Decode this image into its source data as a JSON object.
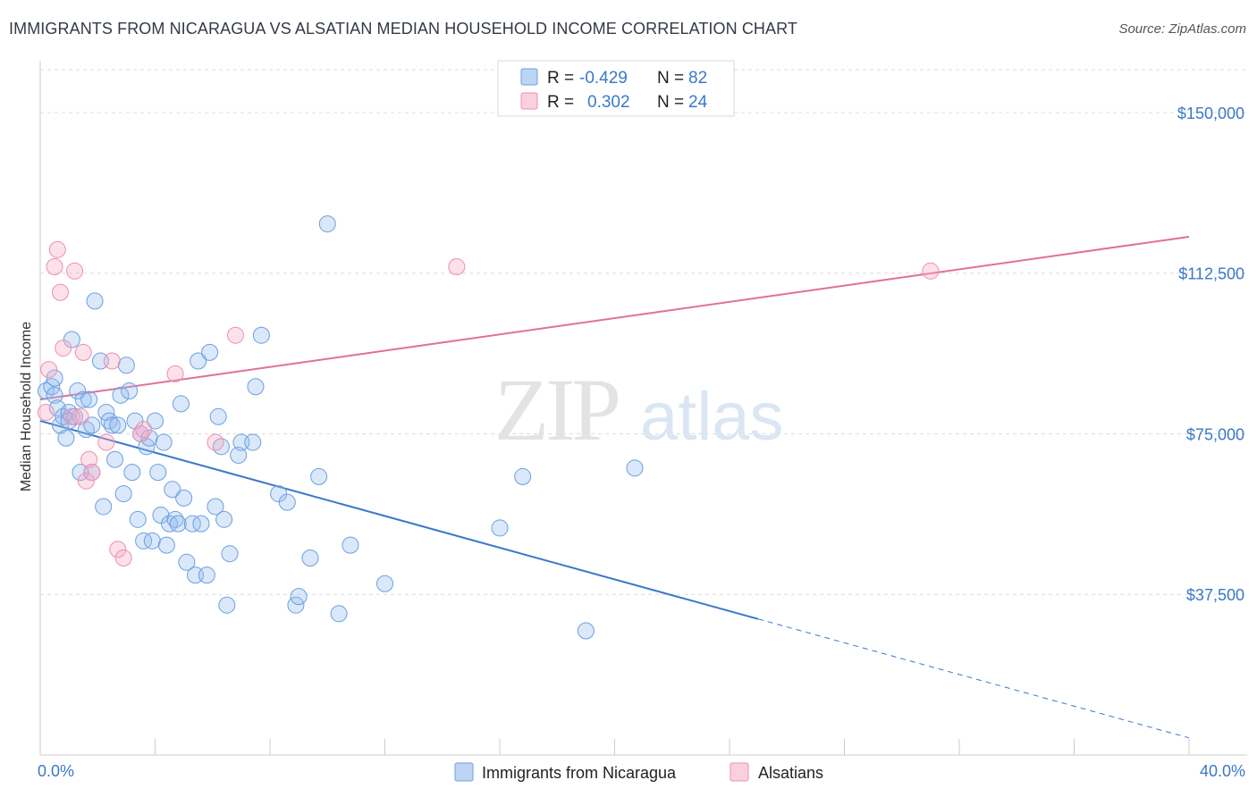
{
  "header": {
    "title": "IMMIGRANTS FROM NICARAGUA VS ALSATIAN MEDIAN HOUSEHOLD INCOME CORRELATION CHART",
    "source": "Source: ZipAtlas.com"
  },
  "watermark": {
    "zip": "ZIP",
    "atlas": "atlas"
  },
  "legend": {
    "rows": [
      {
        "r_label": "R =",
        "r_value": "-0.429",
        "n_label": "N =",
        "n_value": "82",
        "color": "#a8c8f0"
      },
      {
        "r_label": "R =",
        "r_value": "0.302",
        "n_label": "N =",
        "n_value": "24",
        "color": "#f6b8cc"
      }
    ]
  },
  "bottom_legend": {
    "items": [
      {
        "label": "Immigrants from Nicaragua",
        "color": "#a8c8f0"
      },
      {
        "label": "Alsatians",
        "color": "#f6b8cc"
      }
    ]
  },
  "colors": {
    "blue": "#3a78c8",
    "pink": "#e07098",
    "blue_fill": "rgba(150,190,240,0.35)",
    "pink_fill": "rgba(246,170,196,0.35)"
  },
  "chart_data": {
    "type": "scatter",
    "title": "IMMIGRANTS FROM NICARAGUA VS ALSATIAN MEDIAN HOUSEHOLD INCOME CORRELATION CHART",
    "xlabel": "",
    "ylabel": "Median Household Income",
    "xlim": [
      0,
      40
    ],
    "ylim": [
      0,
      160000
    ],
    "x_tick_labels": [
      "0.0%",
      "40.0%"
    ],
    "y_ticks": [
      37500,
      75000,
      112500,
      150000
    ],
    "y_tick_labels": [
      "$37,500",
      "$75,000",
      "$112,500",
      "$150,000"
    ],
    "grid": true,
    "series": [
      {
        "name": "Immigrants from Nicaragua",
        "points": [
          [
            0.2,
            85000
          ],
          [
            0.4,
            86000
          ],
          [
            0.5,
            88000
          ],
          [
            0.5,
            84000
          ],
          [
            0.6,
            81000
          ],
          [
            0.7,
            77000
          ],
          [
            0.8,
            79000
          ],
          [
            0.9,
            74000
          ],
          [
            1.0,
            80000
          ],
          [
            1.0,
            78000
          ],
          [
            1.1,
            97000
          ],
          [
            1.2,
            79000
          ],
          [
            1.3,
            85000
          ],
          [
            1.4,
            66000
          ],
          [
            1.5,
            83000
          ],
          [
            1.6,
            76000
          ],
          [
            1.7,
            83000
          ],
          [
            1.8,
            66000
          ],
          [
            1.8,
            77000
          ],
          [
            1.9,
            106000
          ],
          [
            2.1,
            92000
          ],
          [
            2.2,
            58000
          ],
          [
            2.3,
            80000
          ],
          [
            2.4,
            78000
          ],
          [
            2.5,
            77000
          ],
          [
            2.6,
            69000
          ],
          [
            2.7,
            77000
          ],
          [
            2.8,
            84000
          ],
          [
            2.9,
            61000
          ],
          [
            3.0,
            91000
          ],
          [
            3.1,
            85000
          ],
          [
            3.2,
            66000
          ],
          [
            3.3,
            78000
          ],
          [
            3.4,
            55000
          ],
          [
            3.5,
            75000
          ],
          [
            3.6,
            50000
          ],
          [
            3.7,
            72000
          ],
          [
            3.8,
            74000
          ],
          [
            3.9,
            50000
          ],
          [
            4.0,
            78000
          ],
          [
            4.1,
            66000
          ],
          [
            4.2,
            56000
          ],
          [
            4.3,
            73000
          ],
          [
            4.4,
            49000
          ],
          [
            4.5,
            54000
          ],
          [
            4.6,
            62000
          ],
          [
            4.7,
            55000
          ],
          [
            4.8,
            54000
          ],
          [
            4.9,
            82000
          ],
          [
            5.0,
            60000
          ],
          [
            5.1,
            45000
          ],
          [
            5.3,
            54000
          ],
          [
            5.4,
            42000
          ],
          [
            5.5,
            92000
          ],
          [
            5.6,
            54000
          ],
          [
            5.8,
            42000
          ],
          [
            5.9,
            94000
          ],
          [
            6.1,
            58000
          ],
          [
            6.2,
            79000
          ],
          [
            6.3,
            72000
          ],
          [
            6.4,
            55000
          ],
          [
            6.5,
            35000
          ],
          [
            6.6,
            47000
          ],
          [
            6.9,
            70000
          ],
          [
            7.0,
            73000
          ],
          [
            7.4,
            73000
          ],
          [
            7.5,
            86000
          ],
          [
            7.7,
            98000
          ],
          [
            8.3,
            61000
          ],
          [
            8.6,
            59000
          ],
          [
            8.9,
            35000
          ],
          [
            9.0,
            37000
          ],
          [
            9.4,
            46000
          ],
          [
            9.7,
            65000
          ],
          [
            10.0,
            124000
          ],
          [
            10.4,
            33000
          ],
          [
            10.8,
            49000
          ],
          [
            12.0,
            40000
          ],
          [
            16.0,
            53000
          ],
          [
            16.8,
            65000
          ],
          [
            19.0,
            29000
          ],
          [
            20.7,
            67000
          ]
        ]
      },
      {
        "name": "Alsatians",
        "points": [
          [
            0.2,
            80000
          ],
          [
            0.3,
            90000
          ],
          [
            0.5,
            114000
          ],
          [
            0.6,
            118000
          ],
          [
            0.7,
            108000
          ],
          [
            0.8,
            95000
          ],
          [
            1.1,
            79000
          ],
          [
            1.2,
            113000
          ],
          [
            1.4,
            79000
          ],
          [
            1.5,
            94000
          ],
          [
            1.6,
            64000
          ],
          [
            1.7,
            69000
          ],
          [
            1.8,
            66000
          ],
          [
            2.3,
            73000
          ],
          [
            2.5,
            92000
          ],
          [
            2.7,
            48000
          ],
          [
            2.9,
            46000
          ],
          [
            3.5,
            75000
          ],
          [
            3.6,
            76000
          ],
          [
            4.7,
            89000
          ],
          [
            6.1,
            73000
          ],
          [
            6.8,
            98000
          ],
          [
            14.5,
            114000
          ],
          [
            31.0,
            113000
          ]
        ]
      }
    ],
    "trend_lines": [
      {
        "name": "Immigrants from Nicaragua",
        "x_solid": [
          0,
          25
        ],
        "x_dashed": [
          25,
          40
        ],
        "y_at_0": 78000,
        "y_at_40": 4000
      },
      {
        "name": "Alsatians",
        "x_solid": [
          0,
          40
        ],
        "y_at_0": 83000,
        "y_at_40": 121000
      }
    ]
  }
}
